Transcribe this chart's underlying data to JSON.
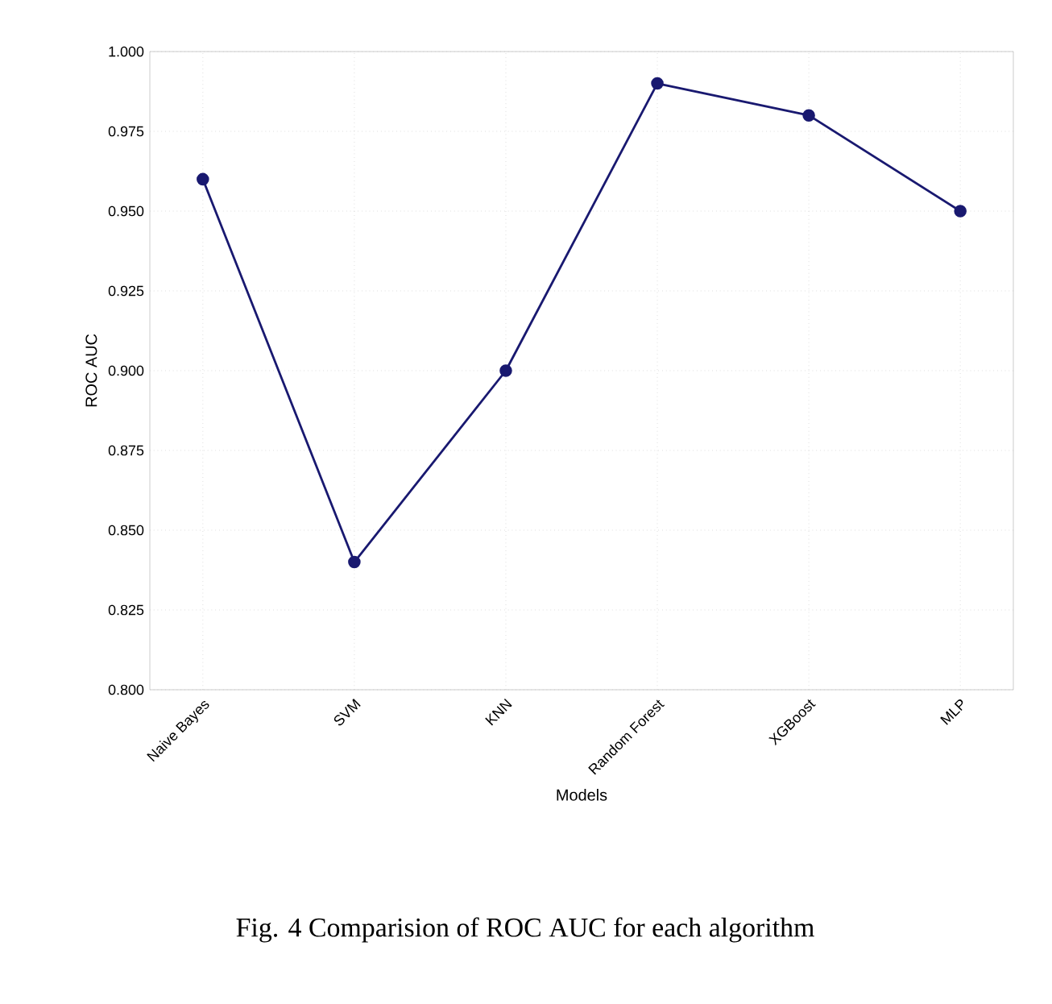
{
  "chart_data": {
    "type": "line",
    "xlabel": "Models",
    "ylabel": "ROC AUC",
    "categories": [
      "Naive Bayes",
      "SVM",
      "KNN",
      "Random Forest",
      "XGBoost",
      "MLP"
    ],
    "series": [
      {
        "color": "#191970",
        "values": [
          0.96,
          0.84,
          0.9,
          0.99,
          0.98,
          0.95
        ]
      }
    ],
    "ylim": [
      0.8,
      1.0
    ],
    "yticks": [
      {
        "value": 0.8,
        "label": "0.800"
      },
      {
        "value": 0.825,
        "label": "0.825"
      },
      {
        "value": 0.85,
        "label": "0.850"
      },
      {
        "value": 0.875,
        "label": "0.875"
      },
      {
        "value": 0.9,
        "label": "0.900"
      },
      {
        "value": 0.925,
        "label": "0.925"
      },
      {
        "value": 0.95,
        "label": "0.950"
      },
      {
        "value": 0.975,
        "label": "0.975"
      },
      {
        "value": 1.0,
        "label": "1.000"
      }
    ],
    "grid": true,
    "marker": "circle",
    "line_style": "solid",
    "annotations": [
      "Fig. 4 Comparision of ROC AUC for each algorithm"
    ]
  }
}
